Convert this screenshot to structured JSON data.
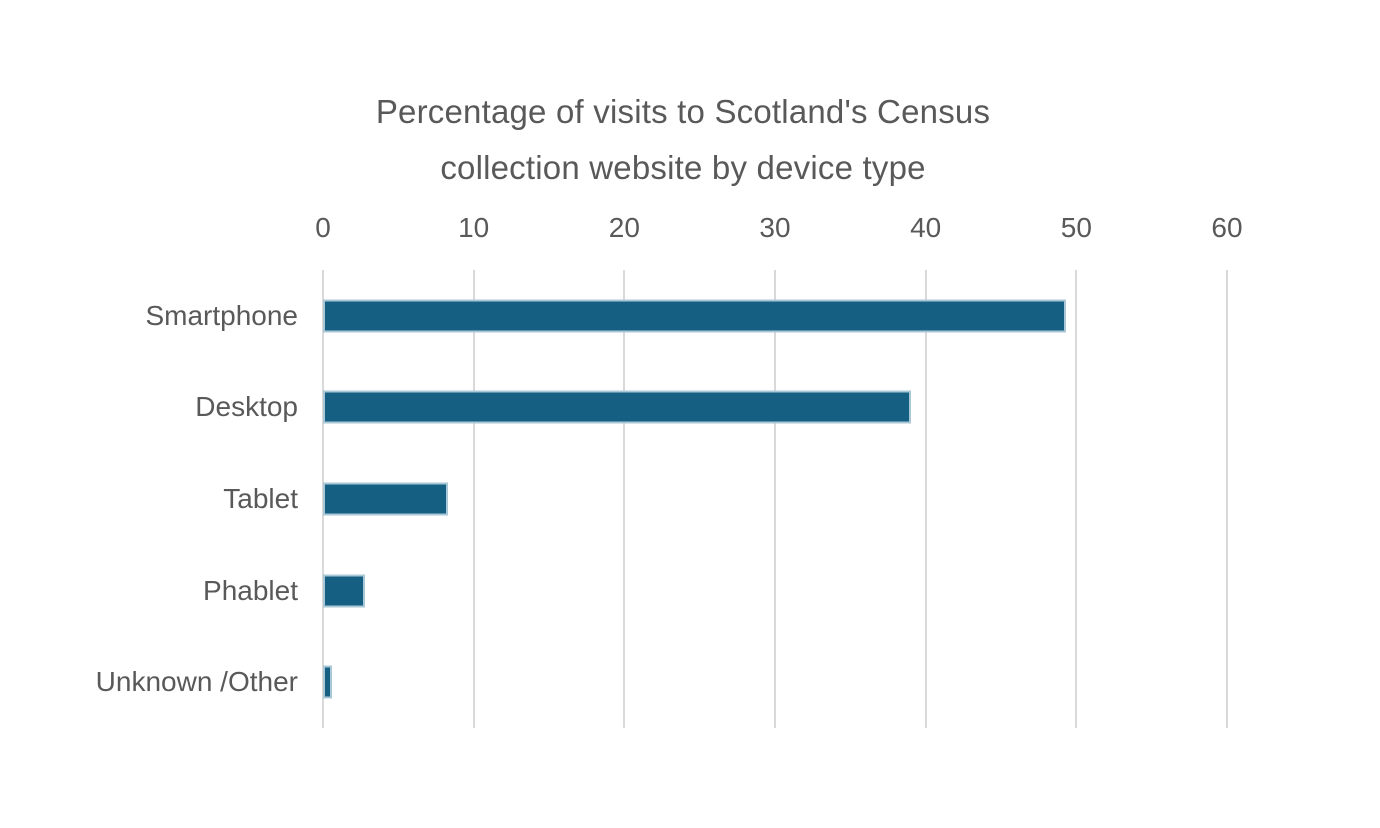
{
  "chart_data": {
    "type": "bar",
    "orientation": "horizontal",
    "title": "Percentage of visits to Scotland's Census collection website by device type",
    "title_lines": [
      "Percentage of visits to Scotland's Census",
      "collection website by device type"
    ],
    "categories": [
      "Smartphone",
      "Desktop",
      "Tablet",
      "Phablet",
      "Unknown /Other"
    ],
    "values": [
      49.3,
      39.0,
      8.3,
      2.8,
      0.6
    ],
    "unit": "%",
    "xlabel": "",
    "ylabel": "",
    "x_ticks": [
      0,
      10,
      20,
      30,
      40,
      50,
      60
    ],
    "xlim": [
      0,
      60
    ],
    "grid": "vertical",
    "legend": "none",
    "colors": {
      "bar_fill": "#156082",
      "bar_edge": "#a9c7d6",
      "gridline": "#d9d9d9",
      "title_text": "#595959",
      "axis_text": "#595959",
      "background": "#ffffff"
    }
  }
}
